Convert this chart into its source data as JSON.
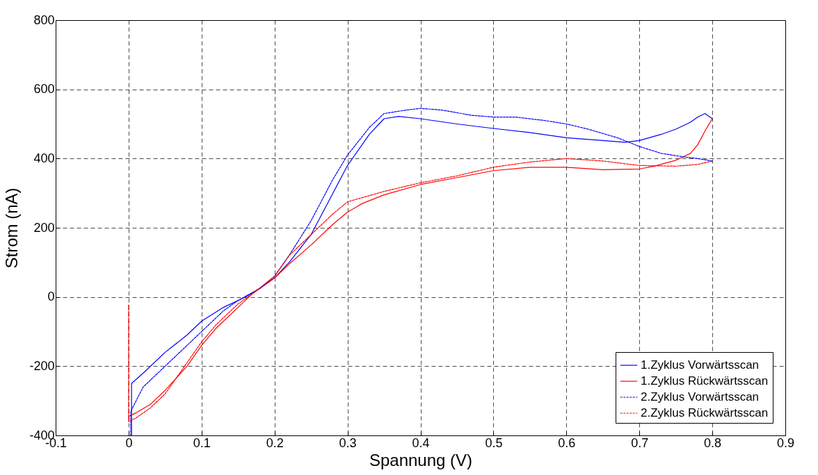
{
  "chart_data": {
    "type": "line",
    "xlabel": "Spannung (V)",
    "ylabel": "Strom (nA)",
    "xlim": [
      -0.1,
      0.9
    ],
    "ylim": [
      -400,
      800
    ],
    "xticks": [
      -0.1,
      0,
      0.1,
      0.2,
      0.3,
      0.4,
      0.5,
      0.6,
      0.7,
      0.8,
      0.9
    ],
    "yticks": [
      -400,
      -200,
      0,
      200,
      400,
      600,
      800
    ],
    "grid": true,
    "legend": "bottom right",
    "marker": "none",
    "series": [
      {
        "name": "1.Zyklus Vorwärtsscan",
        "color": "#0000ff",
        "line_style": "solid",
        "x": [
          0.004,
          0.004,
          0.02,
          0.05,
          0.08,
          0.1,
          0.13,
          0.16,
          0.18,
          0.2,
          0.22,
          0.25,
          0.28,
          0.3,
          0.33,
          0.35,
          0.37,
          0.4,
          0.45,
          0.5,
          0.55,
          0.6,
          0.65,
          0.68,
          0.7,
          0.73,
          0.75,
          0.77,
          0.78,
          0.79,
          0.8
        ],
        "values": [
          -400,
          -250,
          -220,
          -160,
          -110,
          -70,
          -30,
          0,
          25,
          55,
          100,
          180,
          300,
          380,
          470,
          515,
          522,
          515,
          500,
          487,
          475,
          460,
          452,
          447,
          452,
          470,
          485,
          505,
          520,
          530,
          515
        ]
      },
      {
        "name": "1.Zyklus Rückwärtsscan",
        "color": "#ff0000",
        "line_style": "solid",
        "x": [
          0.8,
          0.79,
          0.78,
          0.77,
          0.75,
          0.72,
          0.7,
          0.65,
          0.6,
          0.55,
          0.5,
          0.45,
          0.4,
          0.35,
          0.32,
          0.3,
          0.28,
          0.25,
          0.22,
          0.2,
          0.17,
          0.15,
          0.12,
          0.1,
          0.08,
          0.05,
          0.03,
          0.01,
          0.0
        ],
        "values": [
          515,
          480,
          440,
          415,
          395,
          378,
          370,
          368,
          375,
          375,
          365,
          345,
          325,
          295,
          270,
          245,
          210,
          150,
          95,
          55,
          10,
          -30,
          -90,
          -140,
          -200,
          -270,
          -310,
          -335,
          -345
        ]
      },
      {
        "name": "2.Zyklus Vorwärtsscan",
        "color": "#0000ff",
        "line_style": "dashed",
        "x": [
          0.003,
          0.003,
          0.02,
          0.05,
          0.08,
          0.1,
          0.13,
          0.15,
          0.18,
          0.2,
          0.22,
          0.25,
          0.28,
          0.3,
          0.33,
          0.35,
          0.38,
          0.4,
          0.43,
          0.47,
          0.5,
          0.53,
          0.57,
          0.6,
          0.63,
          0.67,
          0.7,
          0.73,
          0.76,
          0.78,
          0.8
        ],
        "values": [
          -400,
          -330,
          -260,
          -200,
          -140,
          -100,
          -40,
          -10,
          25,
          60,
          120,
          220,
          340,
          410,
          490,
          530,
          540,
          545,
          540,
          525,
          520,
          520,
          510,
          500,
          485,
          460,
          435,
          415,
          405,
          400,
          393
        ]
      },
      {
        "name": "2.Zyklus Rückwärtsscan",
        "color": "#ff0000",
        "line_style": "dashed",
        "x": [
          0.8,
          0.78,
          0.75,
          0.7,
          0.65,
          0.6,
          0.55,
          0.5,
          0.45,
          0.4,
          0.35,
          0.3,
          0.28,
          0.25,
          0.22,
          0.2,
          0.17,
          0.15,
          0.12,
          0.1,
          0.08,
          0.05,
          0.03,
          0.01,
          0.0,
          0.0
        ],
        "values": [
          393,
          383,
          378,
          380,
          393,
          400,
          390,
          375,
          350,
          330,
          305,
          275,
          240,
          180,
          120,
          60,
          10,
          -20,
          -80,
          -130,
          -190,
          -280,
          -320,
          -350,
          -360,
          -20
        ]
      }
    ]
  }
}
